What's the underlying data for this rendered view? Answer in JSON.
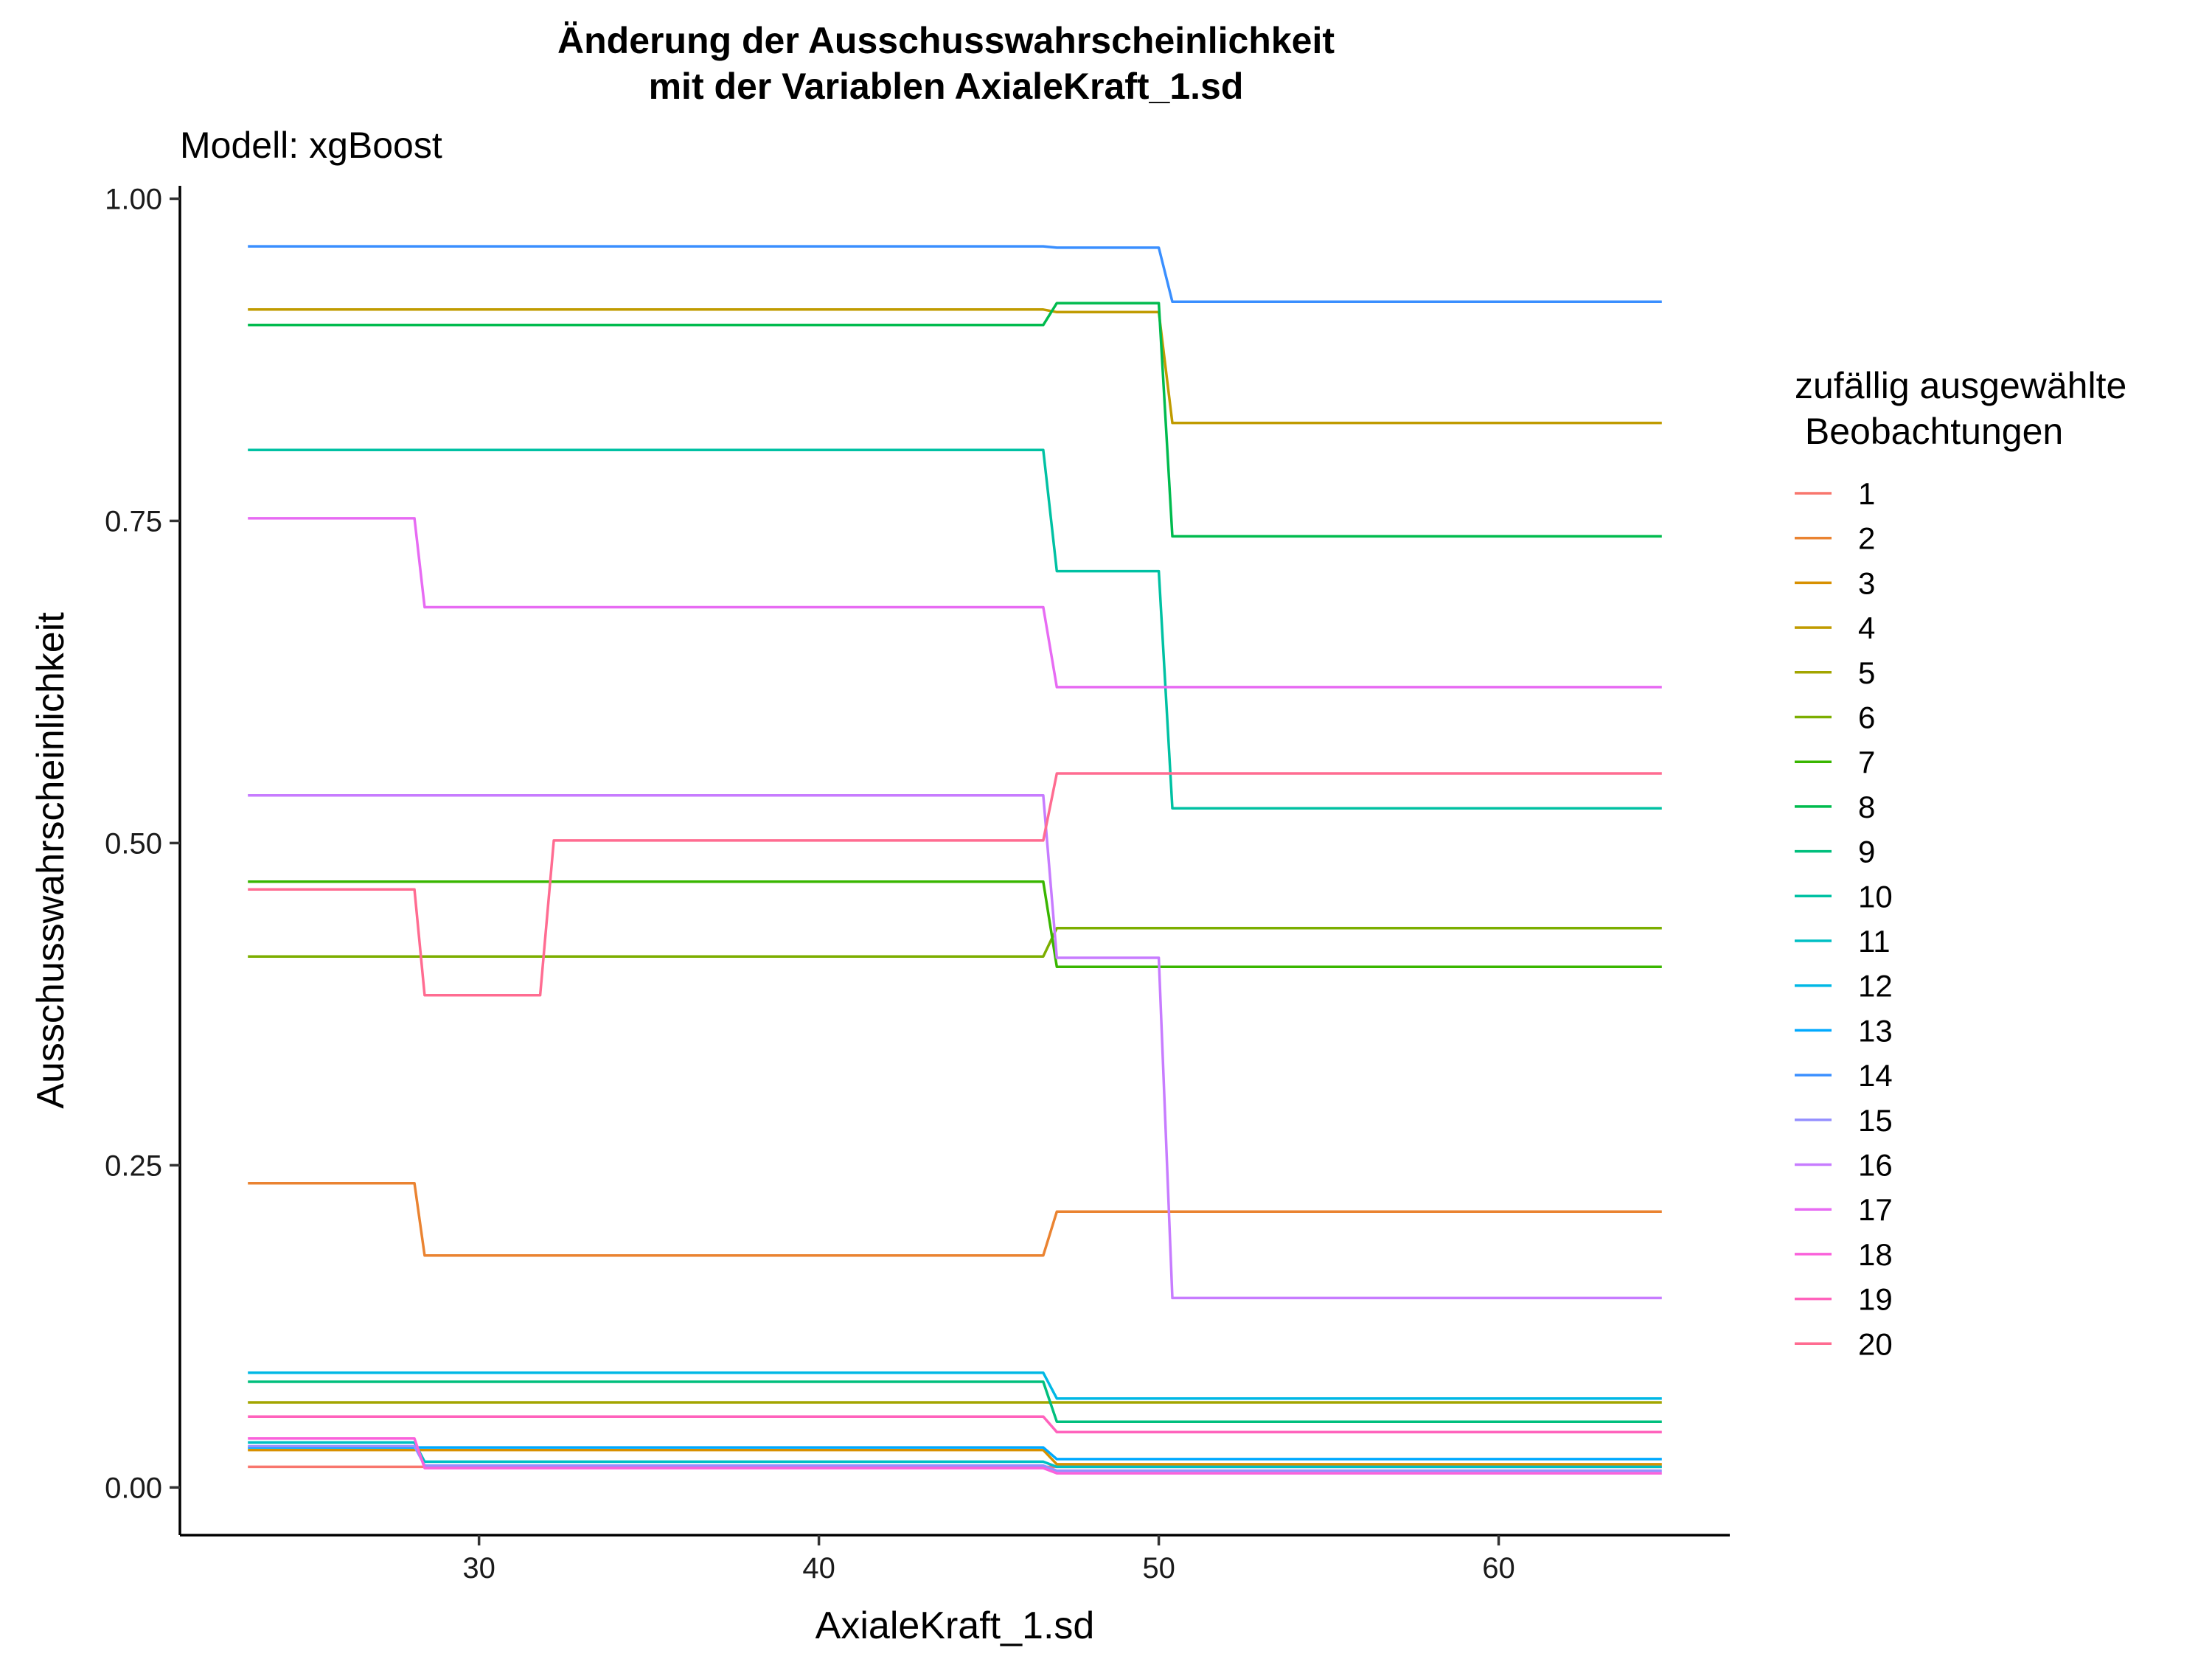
{
  "chart_data": {
    "type": "line",
    "title_line1": "Änderung der Ausschusswahrscheinlichkeit",
    "title_line2": "mit der Variablen AxialeKraft_1.sd",
    "subtitle": "Modell: xgBoost",
    "xlabel": "AxialeKraft_1.sd",
    "ylabel": "Ausschusswahrscheinlichkeit",
    "xlim": [
      21.2,
      66.8
    ],
    "ylim": [
      -0.037,
      1.01
    ],
    "x_ticks": [
      30,
      40,
      50,
      60
    ],
    "x_tick_labels": [
      "30",
      "40",
      "50",
      "60"
    ],
    "y_ticks": [
      0,
      0.25,
      0.5,
      0.75,
      1.0
    ],
    "y_tick_labels": [
      "0.00",
      "0.25",
      "0.50",
      "0.75",
      "1.00"
    ],
    "grid": false,
    "legend_title_line1": "zufällig ausgewählte",
    "legend_title_line2": " Beobachtungen",
    "legend_position": "right",
    "series": [
      {
        "name": "1",
        "color": "#F8766D",
        "points": [
          [
            23.2,
            0.016
          ],
          [
            64.8,
            0.016
          ]
        ]
      },
      {
        "name": "2",
        "color": "#EA8331",
        "points": [
          [
            23.2,
            0.236
          ],
          [
            28.1,
            0.236
          ],
          [
            28.4,
            0.18
          ],
          [
            46.6,
            0.18
          ],
          [
            47.0,
            0.214
          ],
          [
            64.8,
            0.214
          ]
        ]
      },
      {
        "name": "3",
        "color": "#D89000",
        "points": [
          [
            23.2,
            0.029
          ],
          [
            46.6,
            0.029
          ],
          [
            47.0,
            0.018
          ],
          [
            64.8,
            0.018
          ]
        ]
      },
      {
        "name": "4",
        "color": "#C09B00",
        "points": [
          [
            23.2,
            0.914
          ],
          [
            46.6,
            0.914
          ],
          [
            47.0,
            0.912
          ],
          [
            50.0,
            0.912
          ],
          [
            50.4,
            0.826
          ],
          [
            64.8,
            0.826
          ]
        ]
      },
      {
        "name": "5",
        "color": "#A3A500",
        "points": [
          [
            23.2,
            0.066
          ],
          [
            64.8,
            0.066
          ]
        ]
      },
      {
        "name": "6",
        "color": "#7CAE00",
        "points": [
          [
            23.2,
            0.412
          ],
          [
            46.6,
            0.412
          ],
          [
            47.0,
            0.434
          ],
          [
            64.8,
            0.434
          ]
        ]
      },
      {
        "name": "7",
        "color": "#39B600",
        "points": [
          [
            23.2,
            0.47
          ],
          [
            46.6,
            0.47
          ],
          [
            47.0,
            0.404
          ],
          [
            64.8,
            0.404
          ]
        ]
      },
      {
        "name": "8",
        "color": "#00BB4E",
        "points": [
          [
            23.2,
            0.902
          ],
          [
            46.6,
            0.902
          ],
          [
            47.0,
            0.919
          ],
          [
            50.0,
            0.919
          ],
          [
            50.4,
            0.738
          ],
          [
            64.8,
            0.738
          ]
        ]
      },
      {
        "name": "9",
        "color": "#00BF7D",
        "points": [
          [
            23.2,
            0.082
          ],
          [
            46.6,
            0.082
          ],
          [
            47.0,
            0.051
          ],
          [
            64.8,
            0.051
          ]
        ]
      },
      {
        "name": "10",
        "color": "#00C1A3",
        "points": [
          [
            23.2,
            0.805
          ],
          [
            46.6,
            0.805
          ],
          [
            47.0,
            0.711
          ],
          [
            50.0,
            0.711
          ],
          [
            50.4,
            0.527
          ],
          [
            64.8,
            0.527
          ]
        ]
      },
      {
        "name": "11",
        "color": "#00BFC4",
        "points": [
          [
            23.2,
            0.035
          ],
          [
            28.1,
            0.035
          ],
          [
            28.4,
            0.02
          ],
          [
            46.6,
            0.02
          ],
          [
            47.0,
            0.016
          ],
          [
            64.8,
            0.016
          ]
        ]
      },
      {
        "name": "12",
        "color": "#00B8E5",
        "points": [
          [
            23.2,
            0.089
          ],
          [
            46.6,
            0.089
          ],
          [
            47.0,
            0.069
          ],
          [
            64.8,
            0.069
          ]
        ]
      },
      {
        "name": "13",
        "color": "#00A9FF",
        "points": [
          [
            23.2,
            0.031
          ],
          [
            46.6,
            0.031
          ],
          [
            47.0,
            0.022
          ],
          [
            64.8,
            0.022
          ]
        ]
      },
      {
        "name": "14",
        "color": "#3A8FFF",
        "points": [
          [
            23.2,
            0.963
          ],
          [
            46.6,
            0.963
          ],
          [
            47.0,
            0.962
          ],
          [
            50.0,
            0.962
          ],
          [
            50.4,
            0.92
          ],
          [
            64.8,
            0.92
          ]
        ]
      },
      {
        "name": "15",
        "color": "#9590FF",
        "points": [
          [
            23.2,
            0.032
          ],
          [
            28.1,
            0.032
          ],
          [
            28.4,
            0.017
          ],
          [
            46.6,
            0.017
          ],
          [
            47.0,
            0.013
          ],
          [
            64.8,
            0.013
          ]
        ]
      },
      {
        "name": "16",
        "color": "#C77CFF",
        "points": [
          [
            23.2,
            0.537
          ],
          [
            46.6,
            0.537
          ],
          [
            47.0,
            0.411
          ],
          [
            50.0,
            0.411
          ],
          [
            50.4,
            0.147
          ],
          [
            64.8,
            0.147
          ]
        ]
      },
      {
        "name": "17",
        "color": "#E76BF3",
        "points": [
          [
            23.2,
            0.752
          ],
          [
            28.1,
            0.752
          ],
          [
            28.4,
            0.683
          ],
          [
            46.6,
            0.683
          ],
          [
            47.0,
            0.621
          ],
          [
            64.8,
            0.621
          ]
        ]
      },
      {
        "name": "18",
        "color": "#FA62DB",
        "points": [
          [
            23.2,
            0.038
          ],
          [
            28.1,
            0.038
          ],
          [
            28.4,
            0.015
          ],
          [
            46.6,
            0.015
          ],
          [
            47.0,
            0.011
          ],
          [
            64.8,
            0.011
          ]
        ]
      },
      {
        "name": "19",
        "color": "#FF62BC",
        "points": [
          [
            23.2,
            0.055
          ],
          [
            46.6,
            0.055
          ],
          [
            47.0,
            0.043
          ],
          [
            64.8,
            0.043
          ]
        ]
      },
      {
        "name": "20",
        "color": "#FF6C91",
        "points": [
          [
            23.2,
            0.464
          ],
          [
            28.1,
            0.464
          ],
          [
            28.4,
            0.382
          ],
          [
            31.8,
            0.382
          ],
          [
            32.2,
            0.502
          ],
          [
            46.6,
            0.502
          ],
          [
            47.0,
            0.554
          ],
          [
            64.8,
            0.554
          ]
        ]
      }
    ]
  }
}
